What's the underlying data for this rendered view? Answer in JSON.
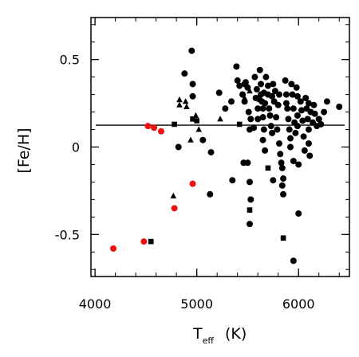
{
  "chart_data": {
    "type": "scatter",
    "title": "",
    "xlabel": "T",
    "xlabel_sub": "eff",
    "xlabel_unit": "(K)",
    "ylabel": "[Fe/H]",
    "xlim": [
      3960,
      6500
    ],
    "ylim": [
      -0.74,
      0.74
    ],
    "x_ticks": [
      {
        "value": 4000,
        "label": "4000"
      },
      {
        "value": 5000,
        "label": "5000"
      },
      {
        "value": 6000,
        "label": "6000"
      }
    ],
    "y_ticks": [
      {
        "value": -0.5,
        "label": "-0.5"
      },
      {
        "value": 0,
        "label": "0"
      },
      {
        "value": 0.5,
        "label": "0.5"
      }
    ],
    "x_minor_step": 200,
    "y_minor_step": 0.1,
    "reference_line": {
      "y": 0.125,
      "color": "#000000"
    },
    "grid": false,
    "legend": "none",
    "series": [
      {
        "marker": "circle",
        "color": "#000000",
        "points": [
          [
            4950,
            0.55
          ],
          [
            4880,
            0.42
          ],
          [
            4960,
            0.36
          ],
          [
            4960,
            0.29
          ],
          [
            5060,
            0.04
          ],
          [
            4820,
            0.0
          ],
          [
            5140,
            -0.03
          ],
          [
            5130,
            -0.27
          ],
          [
            5220,
            0.31
          ],
          [
            5280,
            0.22
          ],
          [
            5340,
            0.26
          ],
          [
            5350,
            -0.19
          ],
          [
            5390,
            0.46
          ],
          [
            5400,
            0.38
          ],
          [
            5420,
            0.35
          ],
          [
            5450,
            0.3
          ],
          [
            5470,
            0.36
          ],
          [
            5470,
            0.26
          ],
          [
            5480,
            0.37
          ],
          [
            5500,
            0.34
          ],
          [
            5510,
            0.2
          ],
          [
            5520,
            0.1
          ],
          [
            5530,
            0.16
          ],
          [
            5560,
            0.11
          ],
          [
            5600,
            0.16
          ],
          [
            5500,
            -0.09
          ],
          [
            5520,
            -0.2
          ],
          [
            5530,
            -0.3
          ],
          [
            5520,
            -0.44
          ],
          [
            5570,
            0.4
          ],
          [
            5580,
            0.28
          ],
          [
            5590,
            0.33
          ],
          [
            5600,
            0.22
          ],
          [
            5610,
            0.28
          ],
          [
            5620,
            0.44
          ],
          [
            5630,
            0.36
          ],
          [
            5630,
            0.3
          ],
          [
            5640,
            0.26
          ],
          [
            5650,
            0.22
          ],
          [
            5650,
            0.17
          ],
          [
            5660,
            0.1
          ],
          [
            5650,
            0.04
          ],
          [
            5670,
            -0.02
          ],
          [
            5660,
            0.31
          ],
          [
            5670,
            0.25
          ],
          [
            5680,
            0.4
          ],
          [
            5700,
            0.35
          ],
          [
            5700,
            0.3
          ],
          [
            5710,
            0.22
          ],
          [
            5720,
            0.18
          ],
          [
            5730,
            0.12
          ],
          [
            5740,
            0.08
          ],
          [
            5740,
            0.29
          ],
          [
            5750,
            0.36
          ],
          [
            5760,
            0.26
          ],
          [
            5770,
            0.32
          ],
          [
            5780,
            0.17
          ],
          [
            5790,
            0.1
          ],
          [
            5800,
            0.24
          ],
          [
            5810,
            0.3
          ],
          [
            5810,
            0.02
          ],
          [
            5820,
            -0.04
          ],
          [
            5830,
            -0.09
          ],
          [
            5840,
            -0.12
          ],
          [
            5850,
            -0.18
          ],
          [
            5840,
            -0.22
          ],
          [
            5850,
            -0.27
          ],
          [
            5870,
            0.38
          ],
          [
            5880,
            0.3
          ],
          [
            5880,
            0.25
          ],
          [
            5890,
            0.22
          ],
          [
            5900,
            0.16
          ],
          [
            5910,
            0.1
          ],
          [
            5920,
            0.05
          ],
          [
            5920,
            0.0
          ],
          [
            5930,
            0.36
          ],
          [
            5940,
            0.3
          ],
          [
            5950,
            0.22
          ],
          [
            5950,
            -0.08
          ],
          [
            5960,
            0.14
          ],
          [
            5970,
            0.08
          ],
          [
            5980,
            0.34
          ],
          [
            5990,
            0.29
          ],
          [
            5990,
            0.18
          ],
          [
            6000,
            -0.1
          ],
          [
            6000,
            -0.38
          ],
          [
            5990,
            0.12
          ],
          [
            6020,
            0.26
          ],
          [
            6030,
            0.21
          ],
          [
            6040,
            0.15
          ],
          [
            6050,
            0.06
          ],
          [
            6060,
            -0.02
          ],
          [
            6070,
            0.28
          ],
          [
            6080,
            0.22
          ],
          [
            6090,
            0.16
          ],
          [
            6100,
            0.1
          ],
          [
            6100,
            0.02
          ],
          [
            6110,
            -0.05
          ],
          [
            6100,
            0.25
          ],
          [
            6120,
            0.2
          ],
          [
            6140,
            0.14
          ],
          [
            6150,
            0.24
          ],
          [
            6160,
            0.19
          ],
          [
            6180,
            0.12
          ],
          [
            6200,
            0.16
          ],
          [
            6220,
            0.13
          ],
          [
            6250,
            0.2
          ],
          [
            6280,
            0.26
          ],
          [
            6400,
            0.23
          ],
          [
            5750,
            -0.19
          ],
          [
            5950,
            -0.65
          ],
          [
            5460,
            -0.09
          ]
        ]
      },
      {
        "marker": "triangle",
        "color": "#000000",
        "points": [
          [
            4830,
            0.27
          ],
          [
            4830,
            0.24
          ],
          [
            4890,
            0.26
          ],
          [
            4900,
            0.23
          ],
          [
            4990,
            0.18
          ],
          [
            5020,
            0.1
          ],
          [
            4940,
            0.04
          ],
          [
            4770,
            -0.28
          ],
          [
            5230,
            0.16
          ],
          [
            5470,
            0.28
          ],
          [
            5520,
            0.32
          ],
          [
            5620,
            0.27
          ]
        ]
      },
      {
        "marker": "square",
        "color": "#000000",
        "points": [
          [
            4780,
            0.13
          ],
          [
            4960,
            0.16
          ],
          [
            5000,
            0.15
          ],
          [
            4550,
            -0.54
          ],
          [
            5520,
            -0.36
          ],
          [
            5700,
            -0.12
          ],
          [
            5850,
            -0.52
          ],
          [
            5420,
            0.13
          ]
        ]
      },
      {
        "marker": "circle",
        "color": "#ee1111",
        "points": [
          [
            4520,
            0.12
          ],
          [
            4580,
            0.11
          ],
          [
            4650,
            0.09
          ],
          [
            4780,
            -0.35
          ],
          [
            4960,
            -0.21
          ],
          [
            4480,
            -0.54
          ],
          [
            4180,
            -0.58
          ]
        ]
      }
    ]
  }
}
